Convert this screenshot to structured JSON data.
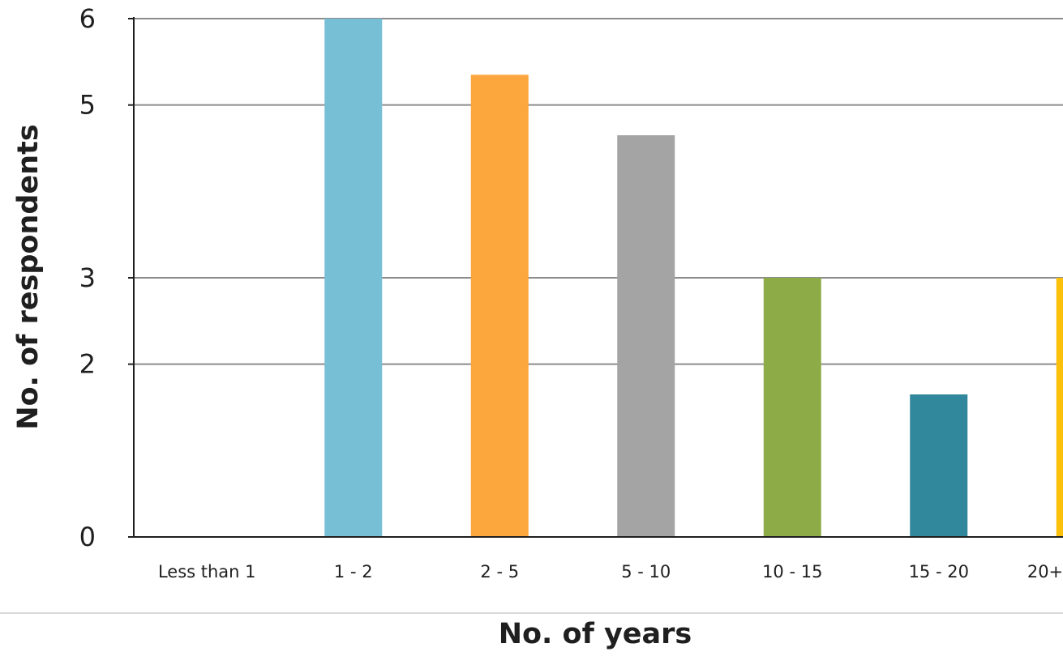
{
  "chart_data": {
    "type": "bar",
    "title": "",
    "xlabel": "No. of years",
    "ylabel": "No. of respondents",
    "categories": [
      "Less than 1",
      "1 - 2",
      "2 - 5",
      "5 - 10",
      "10 - 15",
      "15 - 20",
      "20+"
    ],
    "values": [
      0,
      6,
      5.35,
      4.65,
      3,
      1.65,
      3
    ],
    "bar_colors": [
      "#ffffff",
      "#77bfd5",
      "#fca63e",
      "#a4a4a4",
      "#8dab46",
      "#31879c",
      "#fcbf0a"
    ],
    "ylim": [
      0,
      6
    ],
    "y_tick_values": [
      0,
      2,
      3,
      5,
      6
    ],
    "y_tick_labels": [
      "0",
      "2",
      "3",
      "5",
      "6"
    ],
    "grid": true,
    "legend": "none"
  }
}
